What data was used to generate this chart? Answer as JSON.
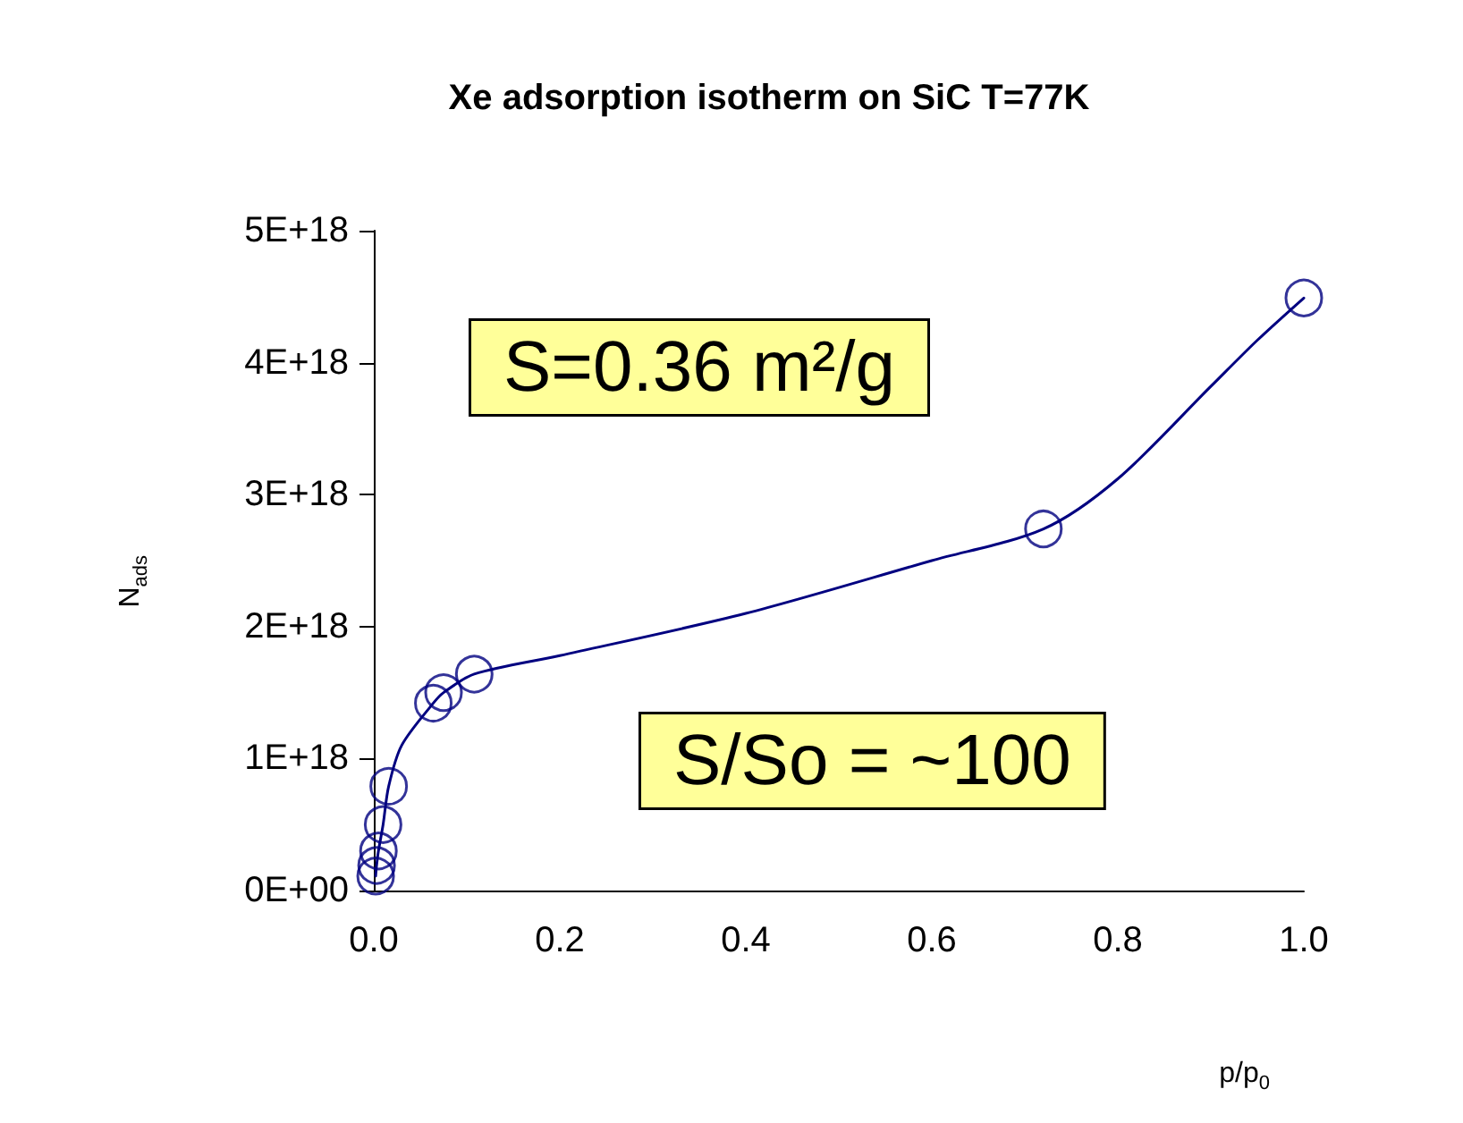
{
  "chart_data": {
    "type": "scatter",
    "title": "Xe adsorption isotherm on SiC T=77K",
    "xlabel": "p/p$_{0}$",
    "ylabel": "N$_{ads}$",
    "series": [
      {
        "color": "#000080",
        "marker": "circle",
        "x": [
          0.002,
          0.003,
          0.005,
          0.01,
          0.016,
          0.064,
          0.075,
          0.108,
          0.72,
          1.0
        ],
        "values": [
          1.1e+17,
          1.9e+17,
          3e+17,
          5e+17,
          7.9e+17,
          1.42e+18,
          1.5e+18,
          1.64e+18,
          2.74e+18,
          4.49e+18
        ]
      },
      {
        "type": "line",
        "color": "#000080",
        "marker": "none",
        "x": [
          0.002,
          0.003,
          0.005,
          0.01,
          0.016,
          0.03,
          0.064,
          0.075,
          0.108,
          0.2,
          0.4,
          0.6,
          0.72,
          0.8,
          0.9,
          0.95,
          1.0
        ],
        "values": [
          1.1e+17,
          1.9e+17,
          3e+17,
          5e+17,
          7.9e+17,
          1.1e+18,
          1.42e+18,
          1.5e+18,
          1.64e+18,
          1.78e+18,
          2.1e+18,
          2.5e+18,
          2.74e+18,
          3.12e+18,
          3.82e+18,
          4.17e+18,
          4.49e+18
        ]
      }
    ],
    "xlim": [
      0,
      1
    ],
    "xticks": [
      {
        "value": 0,
        "label": "0.0"
      },
      {
        "value": 0.2,
        "label": "0.2"
      },
      {
        "value": 0.4,
        "label": "0.4"
      },
      {
        "value": 0.6,
        "label": "0.6"
      },
      {
        "value": 0.8,
        "label": "0.8"
      },
      {
        "value": 1,
        "label": "1.0"
      }
    ],
    "ylim": [
      0,
      5e+18
    ],
    "yticks": [
      {
        "value": 0,
        "label": "0E+00"
      },
      {
        "value": 1e+18,
        "label": "1E+18"
      },
      {
        "value": 2e+18,
        "label": "2E+18"
      },
      {
        "value": 3e+18,
        "label": "3E+18"
      },
      {
        "value": 4e+18,
        "label": "4E+18"
      },
      {
        "value": 5e+18,
        "label": "5E+18"
      }
    ],
    "grid": false,
    "annotations": [
      "S=0.36 m²/g",
      "S/So = ~100"
    ]
  }
}
